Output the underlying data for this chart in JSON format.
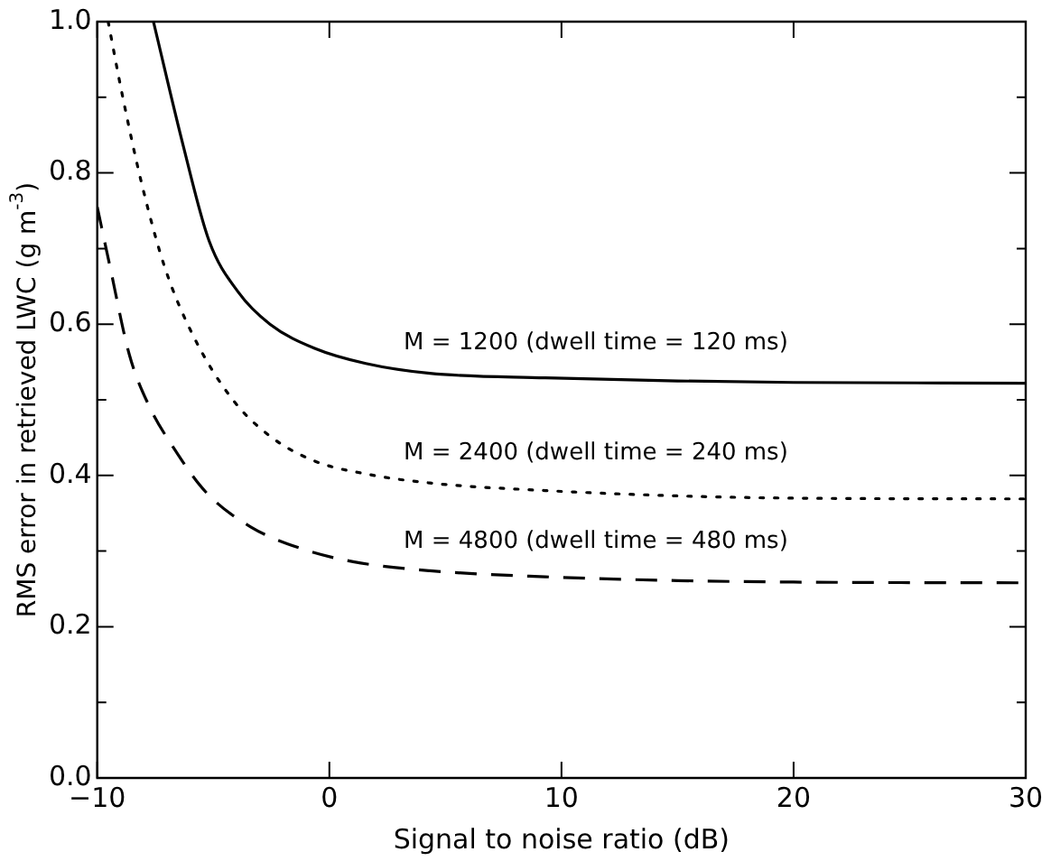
{
  "chart_data": {
    "type": "line",
    "xlabel": "Signal to noise ratio (dB)",
    "ylabel": "RMS error in retrieved LWC (g m$^{-3}$)",
    "xlim": [
      -10,
      30
    ],
    "xticks": [
      -10,
      0,
      10,
      20,
      30
    ],
    "ylim": [
      0,
      1.0
    ],
    "yticks": [
      {
        "value": 0,
        "label": "0.0"
      },
      {
        "value": 0.1,
        "label": null
      },
      {
        "value": 0.2,
        "label": "0.2"
      },
      {
        "value": 0.3,
        "label": null
      },
      {
        "value": 0.4,
        "label": "0.4"
      },
      {
        "value": 0.5,
        "label": null
      },
      {
        "value": 0.6,
        "label": "0.6"
      },
      {
        "value": 0.7,
        "label": null
      },
      {
        "value": 0.8,
        "label": "0.8"
      },
      {
        "value": 0.9,
        "label": null
      },
      {
        "value": 1.0,
        "label": "1.0"
      }
    ],
    "grid": false,
    "legend": false,
    "marker": "none",
    "series": [
      {
        "name": "M = 1200 (dwell time = 120 ms)",
        "color": "#000000",
        "line_style": "solid",
        "x": [
          -7.58,
          -6.28,
          -5.18,
          -3.94,
          -2.56,
          -0.63,
          1.57,
          4.33,
          9.3,
          15,
          20,
          30
        ],
        "values": [
          1.0,
          0.834,
          0.71,
          0.643,
          0.6,
          0.568,
          0.548,
          0.535,
          0.529,
          0.525,
          0.523,
          0.522
        ]
      },
      {
        "name": "M = 2400 (dwell time = 240 ms)",
        "color": "#000000",
        "line_style": "dotted",
        "x": [
          -9.53,
          -8.9,
          -8.07,
          -7.1,
          -5.87,
          -4.21,
          -2.56,
          -0.63,
          1.57,
          4.33,
          9.3,
          15,
          20,
          30
        ],
        "values": [
          1.0,
          0.9,
          0.784,
          0.676,
          0.585,
          0.502,
          0.452,
          0.419,
          0.402,
          0.39,
          0.38,
          0.373,
          0.37,
          0.369
        ]
      },
      {
        "name": "M = 4800 (dwell time = 480 ms)",
        "color": "#000000",
        "line_style": "dashed",
        "x": [
          -10,
          -9.45,
          -8.62,
          -7.8,
          -6.7,
          -5.32,
          -3.39,
          -1.18,
          1.02,
          4.33,
          9.3,
          15,
          20,
          30
        ],
        "values": [
          0.755,
          0.676,
          0.56,
          0.494,
          0.436,
          0.378,
          0.332,
          0.303,
          0.286,
          0.274,
          0.266,
          0.261,
          0.259,
          0.258
        ]
      }
    ]
  }
}
